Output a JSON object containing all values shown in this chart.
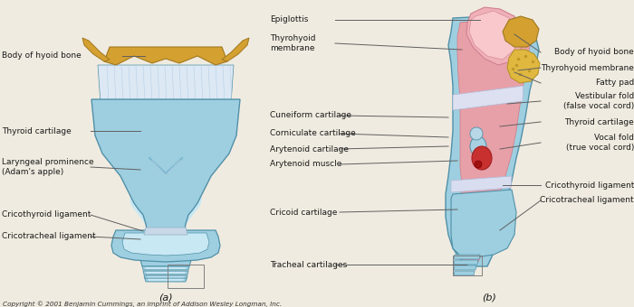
{
  "fig_width": 7.0,
  "fig_height": 3.4,
  "dpi": 100,
  "bg_color": "#f0ebe0",
  "title_a": "(a)",
  "title_b": "(b)",
  "copyright": "Copyright © 2001 Benjamin Cummings, an imprint of Addison Wesley Longman, Inc.",
  "larynx_blue": "#9ecfe0",
  "larynx_blue_dark": "#7ab8d0",
  "larynx_blue_light": "#c8e8f4",
  "membrane_color": "#d8e8f4",
  "hyoid_color": "#d4a030",
  "pink_color": "#e8a0a8",
  "pink_dark": "#d07880",
  "red_color": "#c83030",
  "fatty_color": "#e0b840",
  "outline_color": "#5090a8",
  "text_color": "#1a1a1a",
  "line_color": "#606060",
  "label_fs": 6.5
}
